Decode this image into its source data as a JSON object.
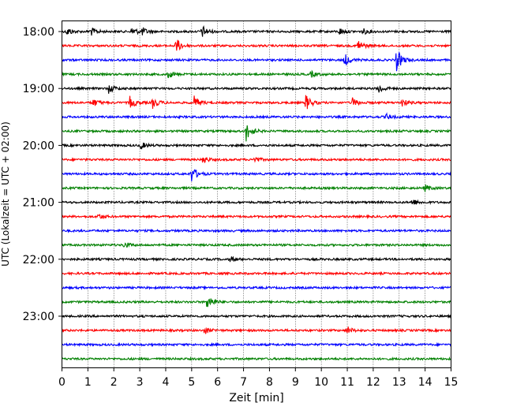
{
  "chart_data": {
    "type": "line",
    "title": "",
    "xlabel": "Zeit  [min]",
    "ylabel": "UTC (Lokalzeit = UTC + 02:00)",
    "xlim": [
      0,
      15
    ],
    "x_ticks": [
      0,
      1,
      2,
      3,
      4,
      5,
      6,
      7,
      8,
      9,
      10,
      11,
      12,
      13,
      14,
      15
    ],
    "y_tick_labels": [
      "18:00",
      "19:00",
      "20:00",
      "21:00",
      "22:00",
      "23:00"
    ],
    "grid": "vertical dotted",
    "trace_interval_minutes": 15,
    "start_time": "18:00",
    "colors": [
      "#000000",
      "#ff0000",
      "#0000ff",
      "#008000"
    ],
    "traces": [
      {
        "time": "18:00",
        "color": "#000000",
        "events": [
          {
            "t": 0.2,
            "amp": 0.35
          },
          {
            "t": 1.1,
            "amp": 0.4
          },
          {
            "t": 2.7,
            "amp": 0.4
          },
          {
            "t": 3.1,
            "amp": 0.3
          },
          {
            "t": 5.4,
            "amp": 0.55
          },
          {
            "t": 10.7,
            "amp": 0.3
          },
          {
            "t": 11.6,
            "amp": 0.25
          }
        ]
      },
      {
        "time": "18:15",
        "color": "#ff0000",
        "events": [
          {
            "t": 4.4,
            "amp": 0.65
          },
          {
            "t": 11.4,
            "amp": 0.55
          }
        ]
      },
      {
        "time": "18:30",
        "color": "#0000ff",
        "events": [
          {
            "t": 10.9,
            "amp": 0.55
          },
          {
            "t": 12.9,
            "amp": 1.0
          }
        ]
      },
      {
        "time": "18:45",
        "color": "#008000",
        "events": [
          {
            "t": 4.1,
            "amp": 0.35
          },
          {
            "t": 9.6,
            "amp": 0.25
          }
        ]
      },
      {
        "time": "19:00",
        "color": "#000000",
        "events": [
          {
            "t": 1.8,
            "amp": 0.4
          },
          {
            "t": 12.2,
            "amp": 0.45
          }
        ]
      },
      {
        "time": "19:15",
        "color": "#ff0000",
        "events": [
          {
            "t": 1.2,
            "amp": 0.35
          },
          {
            "t": 2.6,
            "amp": 0.6
          },
          {
            "t": 3.5,
            "amp": 0.5
          },
          {
            "t": 5.1,
            "amp": 0.55
          },
          {
            "t": 9.4,
            "amp": 0.7
          },
          {
            "t": 11.2,
            "amp": 0.4
          },
          {
            "t": 13.1,
            "amp": 0.35
          }
        ]
      },
      {
        "time": "19:30",
        "color": "#0000ff",
        "events": [
          {
            "t": 12.5,
            "amp": 0.25
          }
        ]
      },
      {
        "time": "19:45",
        "color": "#008000",
        "events": [
          {
            "t": 7.1,
            "amp": 0.85
          }
        ]
      },
      {
        "time": "20:00",
        "color": "#000000",
        "events": [
          {
            "t": 3.0,
            "amp": 0.35
          }
        ]
      },
      {
        "time": "20:15",
        "color": "#ff0000",
        "events": [
          {
            "t": 5.4,
            "amp": 0.4
          },
          {
            "t": 7.4,
            "amp": 0.25
          }
        ]
      },
      {
        "time": "20:30",
        "color": "#0000ff",
        "events": [
          {
            "t": 5.0,
            "amp": 0.7
          }
        ]
      },
      {
        "time": "20:45",
        "color": "#008000",
        "events": [
          {
            "t": 14.0,
            "amp": 0.3
          }
        ]
      },
      {
        "time": "21:00",
        "color": "#000000",
        "events": [
          {
            "t": 13.5,
            "amp": 0.3
          }
        ]
      },
      {
        "time": "21:15",
        "color": "#ff0000",
        "events": [
          {
            "t": 1.4,
            "amp": 0.25
          }
        ]
      },
      {
        "time": "21:30",
        "color": "#0000ff",
        "events": []
      },
      {
        "time": "21:45",
        "color": "#008000",
        "events": [
          {
            "t": 2.4,
            "amp": 0.25
          }
        ]
      },
      {
        "time": "22:00",
        "color": "#000000",
        "events": [
          {
            "t": 6.5,
            "amp": 0.25
          }
        ]
      },
      {
        "time": "22:15",
        "color": "#ff0000",
        "events": []
      },
      {
        "time": "22:30",
        "color": "#0000ff",
        "events": []
      },
      {
        "time": "22:45",
        "color": "#008000",
        "events": [
          {
            "t": 5.6,
            "amp": 0.75
          }
        ]
      },
      {
        "time": "23:00",
        "color": "#000000",
        "events": []
      },
      {
        "time": "23:15",
        "color": "#ff0000",
        "events": [
          {
            "t": 5.5,
            "amp": 0.3
          },
          {
            "t": 11.0,
            "amp": 0.3
          }
        ]
      },
      {
        "time": "23:30",
        "color": "#0000ff",
        "events": []
      },
      {
        "time": "23:45",
        "color": "#008000",
        "events": []
      }
    ]
  }
}
